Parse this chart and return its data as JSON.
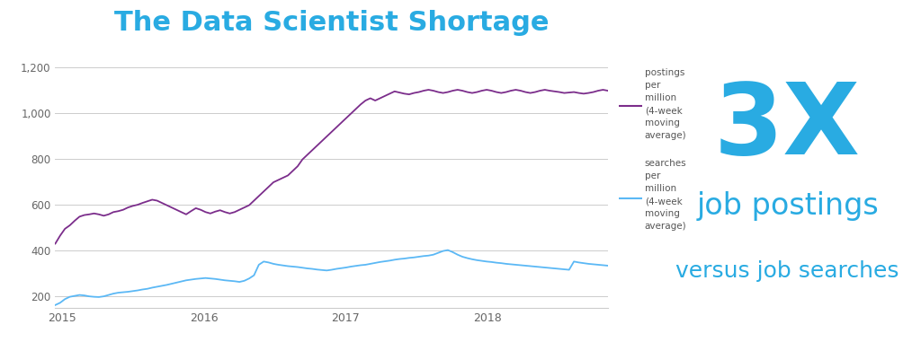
{
  "title": "The Data Scientist Shortage",
  "title_color": "#29abe2",
  "title_fontsize": 22,
  "background_color": "#ffffff",
  "chart_bg": "#ffffff",
  "ylim": [
    150,
    1270
  ],
  "yticks": [
    200,
    400,
    600,
    800,
    1000,
    1200
  ],
  "ytick_labels": [
    "200",
    "400",
    "600",
    "800",
    "1,000",
    "1,200"
  ],
  "xlim_start": 2014.95,
  "xlim_end": 2018.85,
  "xticks": [
    2015,
    2016,
    2017,
    2018
  ],
  "grid_color": "#cccccc",
  "postings_color": "#7b2d8b",
  "searches_color": "#5bb8f5",
  "legend_postings": "postings\nper\nmillion\n(4-week\nmoving\naverage)",
  "legend_searches": "searches\nper\nmillion\n(4-week\nmoving\naverage)",
  "label_3x": "3X",
  "label_job_postings": "job postings",
  "label_versus": "versus job searches",
  "text_color_blue": "#29abe2",
  "postings_values": [
    430,
    465,
    495,
    510,
    530,
    548,
    555,
    558,
    562,
    558,
    552,
    558,
    568,
    572,
    578,
    588,
    595,
    600,
    608,
    615,
    622,
    618,
    608,
    598,
    588,
    578,
    568,
    558,
    572,
    585,
    578,
    568,
    562,
    570,
    576,
    568,
    562,
    568,
    578,
    588,
    598,
    618,
    638,
    658,
    678,
    698,
    708,
    718,
    728,
    748,
    768,
    798,
    818,
    838,
    858,
    878,
    898,
    918,
    938,
    958,
    978,
    998,
    1018,
    1038,
    1055,
    1065,
    1055,
    1065,
    1075,
    1085,
    1095,
    1090,
    1085,
    1082,
    1088,
    1092,
    1098,
    1102,
    1098,
    1092,
    1088,
    1092,
    1098,
    1102,
    1098,
    1092,
    1088,
    1092,
    1098,
    1102,
    1098,
    1092,
    1088,
    1092,
    1098,
    1102,
    1098,
    1092,
    1088,
    1092,
    1098,
    1102,
    1098,
    1095,
    1092,
    1088,
    1090,
    1092,
    1088,
    1085,
    1088,
    1092,
    1098,
    1102,
    1098
  ],
  "searches_values": [
    162,
    172,
    188,
    198,
    202,
    206,
    204,
    200,
    198,
    197,
    200,
    206,
    212,
    216,
    218,
    220,
    223,
    226,
    230,
    233,
    238,
    242,
    246,
    250,
    255,
    260,
    265,
    270,
    273,
    276,
    278,
    280,
    278,
    276,
    273,
    270,
    268,
    266,
    263,
    268,
    278,
    292,
    338,
    352,
    348,
    342,
    338,
    335,
    332,
    330,
    328,
    325,
    322,
    320,
    317,
    315,
    313,
    316,
    320,
    323,
    326,
    330,
    333,
    336,
    338,
    342,
    346,
    350,
    353,
    356,
    360,
    363,
    365,
    368,
    370,
    373,
    376,
    378,
    382,
    390,
    398,
    402,
    393,
    382,
    373,
    367,
    362,
    358,
    355,
    352,
    350,
    347,
    345,
    342,
    340,
    338,
    336,
    334,
    332,
    330,
    328,
    326,
    324,
    322,
    320,
    318,
    316,
    352,
    348,
    345,
    342,
    340,
    338,
    336,
    334
  ]
}
